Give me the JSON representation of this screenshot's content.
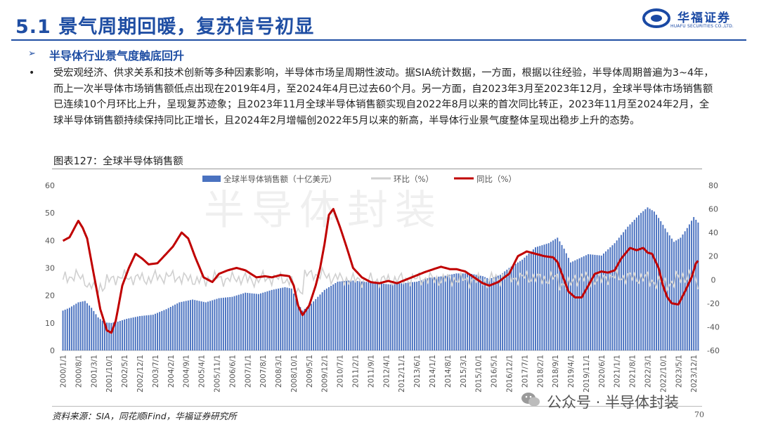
{
  "header": {
    "title": "5.1 景气周期回暖，复苏信号初显",
    "logo_cn": "华福证券",
    "logo_en": "HUAFU SECURITIES CO.,LTD."
  },
  "section": {
    "subtitle": "半导体行业景气度触底回升",
    "bullet": "•",
    "paragraph": "受宏观经济、供求关系和技术创新等多种因素影响，半导体市场呈周期性波动。据SIA统计数据，一方面，根据以往经验，半导体周期普遍为3~4年，而上一次半导体市场销售额低点出现在2019年4月，至2024年4月已过去60个月。另一方面，自2023年3月至2023年12月，全球半导体市场销售额已连续10个月环比上升，呈现复苏迹象；且2023年11月全球半导体销售额实现自2022年8月以来的首次同比转正，2023年11月至2024年2月，全球半导体销售额持续保持同比正增长，且2024年2月增幅创2022年5月以来的新高，半导体行业景气度整体呈现出稳步上升的态势。"
  },
  "figure": {
    "title": "图表127：全球半导体销售额",
    "watermark": "半导体封装"
  },
  "footer": {
    "source": "资料来源：SIA，同花顺iFind，华福证券研究所",
    "wechat_label": "公众号 · 半导体封装",
    "page_number": "70"
  },
  "chart_data": {
    "type": "bar+line",
    "legend": [
      "全球半导体销售额（十亿美元）",
      "环比（%）",
      "同比（%）"
    ],
    "legend_position": "top",
    "colors": {
      "bar": "#4a72c0",
      "mom": "#d0d0d0",
      "yoy": "#c00000"
    },
    "left_axis": {
      "min": 0,
      "max": 60,
      "ticks": [
        0,
        10,
        20,
        30,
        40,
        50,
        60
      ]
    },
    "right_axis": {
      "min": -60,
      "max": 80,
      "ticks": [
        -60,
        -40,
        -20,
        0,
        20,
        40,
        60,
        80
      ]
    },
    "x_tick_labels": [
      "2000/1/1",
      "2000/8/1",
      "2001/3/1",
      "2001/10/1",
      "2002/5/1",
      "2002/12/1",
      "2003/7/1",
      "2004/2/1",
      "2004/9/1",
      "2005/4/1",
      "2005/11/1",
      "2006/6/1",
      "2007/1/1",
      "2007/8/1",
      "2008/3/1",
      "2008/10/1",
      "2009/5/1",
      "2009/12/1",
      "2010/7/1",
      "2011/2/1",
      "2011/9/1",
      "2012/4/1",
      "2012/11/1",
      "2013/6/1",
      "2014/1/1",
      "2014/8/1",
      "2015/3/1",
      "2015/10/1",
      "2016/5/1",
      "2016/12/1",
      "2017/7/1",
      "2018/2/1",
      "2018/9/1",
      "2019/4/1",
      "2019/11/1",
      "2020/6/1",
      "2021/1/1",
      "2021/8/1",
      "2022/3/1",
      "2022/10/1",
      "2023/5/1",
      "2023/12/1"
    ],
    "period": {
      "start": "2000-01",
      "end": "2024-02",
      "frequency": "monthly"
    },
    "sales_anchors": [
      [
        "2000-01",
        14.5
      ],
      [
        "2000-04",
        15.5
      ],
      [
        "2000-08",
        17.5
      ],
      [
        "2000-11",
        18.0
      ],
      [
        "2001-02",
        15.5
      ],
      [
        "2001-05",
        12.0
      ],
      [
        "2001-08",
        10.2
      ],
      [
        "2001-11",
        10.0
      ],
      [
        "2002-02",
        10.5
      ],
      [
        "2002-06",
        11.5
      ],
      [
        "2002-12",
        12.5
      ],
      [
        "2003-06",
        13.0
      ],
      [
        "2003-12",
        15.0
      ],
      [
        "2004-06",
        17.5
      ],
      [
        "2004-12",
        18.5
      ],
      [
        "2005-06",
        17.5
      ],
      [
        "2005-12",
        19.0
      ],
      [
        "2006-06",
        19.5
      ],
      [
        "2006-12",
        21.0
      ],
      [
        "2007-06",
        20.5
      ],
      [
        "2007-12",
        22.0
      ],
      [
        "2008-06",
        23.0
      ],
      [
        "2008-09",
        22.5
      ],
      [
        "2008-12",
        17.0
      ],
      [
        "2009-02",
        14.5
      ],
      [
        "2009-06",
        17.0
      ],
      [
        "2009-12",
        22.0
      ],
      [
        "2010-06",
        25.0
      ],
      [
        "2010-12",
        25.5
      ],
      [
        "2011-06",
        25.0
      ],
      [
        "2011-12",
        24.5
      ],
      [
        "2012-06",
        24.0
      ],
      [
        "2012-12",
        24.5
      ],
      [
        "2013-06",
        25.0
      ],
      [
        "2013-12",
        26.5
      ],
      [
        "2014-06",
        27.0
      ],
      [
        "2014-12",
        28.0
      ],
      [
        "2015-06",
        28.0
      ],
      [
        "2015-12",
        27.0
      ],
      [
        "2016-03",
        26.0
      ],
      [
        "2016-08",
        27.5
      ],
      [
        "2016-12",
        30.0
      ],
      [
        "2017-06",
        33.0
      ],
      [
        "2017-12",
        37.5
      ],
      [
        "2018-06",
        39.0
      ],
      [
        "2018-10",
        41.0
      ],
      [
        "2019-01",
        37.0
      ],
      [
        "2019-04",
        32.0
      ],
      [
        "2019-12",
        35.0
      ],
      [
        "2020-06",
        34.5
      ],
      [
        "2020-12",
        39.0
      ],
      [
        "2021-06",
        45.0
      ],
      [
        "2021-12",
        50.0
      ],
      [
        "2022-03",
        52.0
      ],
      [
        "2022-06",
        50.5
      ],
      [
        "2022-09",
        47.0
      ],
      [
        "2022-12",
        43.0
      ],
      [
        "2023-03",
        39.5
      ],
      [
        "2023-06",
        41.0
      ],
      [
        "2023-09",
        44.5
      ],
      [
        "2023-12",
        48.5
      ],
      [
        "2024-02",
        46.5
      ]
    ],
    "yoy_anchors": [
      [
        "2000-01",
        33
      ],
      [
        "2000-04",
        36
      ],
      [
        "2000-08",
        50
      ],
      [
        "2000-10",
        44
      ],
      [
        "2000-12",
        35
      ],
      [
        "2001-03",
        5
      ],
      [
        "2001-06",
        -25
      ],
      [
        "2001-09",
        -43
      ],
      [
        "2001-11",
        -45
      ],
      [
        "2002-01",
        -35
      ],
      [
        "2002-04",
        -5
      ],
      [
        "2002-07",
        10
      ],
      [
        "2002-10",
        22
      ],
      [
        "2003-01",
        18
      ],
      [
        "2003-04",
        13
      ],
      [
        "2003-08",
        14
      ],
      [
        "2003-12",
        22
      ],
      [
        "2004-03",
        28
      ],
      [
        "2004-07",
        40
      ],
      [
        "2004-10",
        35
      ],
      [
        "2005-01",
        20
      ],
      [
        "2005-05",
        2
      ],
      [
        "2005-09",
        -2
      ],
      [
        "2005-12",
        5
      ],
      [
        "2006-04",
        8
      ],
      [
        "2006-08",
        10
      ],
      [
        "2006-12",
        8
      ],
      [
        "2007-05",
        2
      ],
      [
        "2007-09",
        3
      ],
      [
        "2007-12",
        2
      ],
      [
        "2008-04",
        4
      ],
      [
        "2008-08",
        3
      ],
      [
        "2008-10",
        -5
      ],
      [
        "2008-12",
        -22
      ],
      [
        "2009-02",
        -30
      ],
      [
        "2009-05",
        -22
      ],
      [
        "2009-08",
        -5
      ],
      [
        "2009-10",
        10
      ],
      [
        "2009-12",
        30
      ],
      [
        "2010-02",
        55
      ],
      [
        "2010-04",
        60
      ],
      [
        "2010-07",
        45
      ],
      [
        "2010-10",
        28
      ],
      [
        "2011-01",
        10
      ],
      [
        "2011-05",
        2
      ],
      [
        "2011-09",
        -2
      ],
      [
        "2012-01",
        -3
      ],
      [
        "2012-05",
        -1
      ],
      [
        "2012-09",
        -3
      ],
      [
        "2013-01",
        0
      ],
      [
        "2013-05",
        3
      ],
      [
        "2013-09",
        6
      ],
      [
        "2013-12",
        8
      ],
      [
        "2014-05",
        11
      ],
      [
        "2014-09",
        9
      ],
      [
        "2014-12",
        9
      ],
      [
        "2015-04",
        7
      ],
      [
        "2015-08",
        2
      ],
      [
        "2015-12",
        -3
      ],
      [
        "2016-03",
        -5
      ],
      [
        "2016-07",
        -2
      ],
      [
        "2016-12",
        5
      ],
      [
        "2017-04",
        20
      ],
      [
        "2017-08",
        24
      ],
      [
        "2017-12",
        22
      ],
      [
        "2018-04",
        20
      ],
      [
        "2018-08",
        19
      ],
      [
        "2018-10",
        15
      ],
      [
        "2018-12",
        5
      ],
      [
        "2019-03",
        -10
      ],
      [
        "2019-06",
        -15
      ],
      [
        "2019-09",
        -15
      ],
      [
        "2019-12",
        -5
      ],
      [
        "2020-03",
        5
      ],
      [
        "2020-06",
        7
      ],
      [
        "2020-09",
        6
      ],
      [
        "2020-12",
        8
      ],
      [
        "2021-03",
        18
      ],
      [
        "2021-07",
        27
      ],
      [
        "2021-10",
        25
      ],
      [
        "2022-01",
        27
      ],
      [
        "2022-03",
        23
      ],
      [
        "2022-05",
        22
      ],
      [
        "2022-08",
        10
      ],
      [
        "2022-10",
        -5
      ],
      [
        "2022-12",
        -15
      ],
      [
        "2023-02",
        -20
      ],
      [
        "2023-05",
        -21
      ],
      [
        "2023-08",
        -10
      ],
      [
        "2023-11",
        2
      ],
      [
        "2024-01",
        14
      ],
      [
        "2024-02",
        16
      ]
    ],
    "mom_range_note": "monthly sequential change fluctuating roughly between -10% and +10%, with a spike near 2009"
  }
}
